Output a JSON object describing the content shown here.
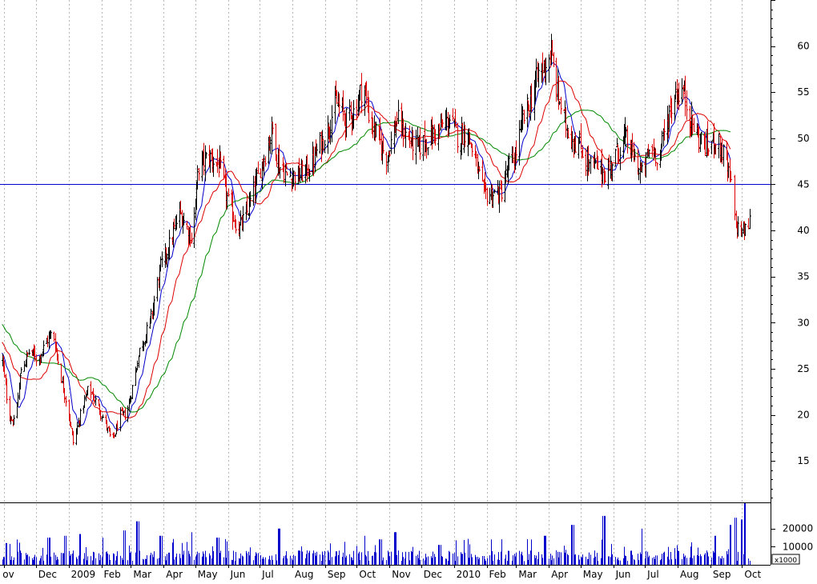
{
  "chart_data": [
    {
      "type": "candlestick",
      "title": "",
      "price_axis": {
        "ticks": [
          15,
          20,
          25,
          30,
          35,
          40,
          45,
          50,
          55,
          60
        ],
        "ylim": [
          10.5,
          65
        ],
        "side": "right"
      },
      "x_axis": {
        "month_ticks": [
          {
            "label": "ov",
            "day": 2
          },
          {
            "label": "Dec",
            "day": 32
          },
          {
            "label": "2009",
            "day": 63
          },
          {
            "label": "Feb",
            "day": 94
          },
          {
            "label": "Mar",
            "day": 122
          },
          {
            "label": "Apr",
            "day": 153
          },
          {
            "label": "May",
            "day": 183
          },
          {
            "label": "Jun",
            "day": 214
          },
          {
            "label": "Jul",
            "day": 244
          },
          {
            "label": "Aug",
            "day": 275
          },
          {
            "label": "Sep",
            "day": 306
          },
          {
            "label": "Oct",
            "day": 336
          },
          {
            "label": "Nov",
            "day": 367
          },
          {
            "label": "Dec",
            "day": 397
          },
          {
            "label": "2010",
            "day": 428
          },
          {
            "label": "Feb",
            "day": 459
          },
          {
            "label": "Mar",
            "day": 487
          },
          {
            "label": "Apr",
            "day": 518
          },
          {
            "label": "May",
            "day": 548
          },
          {
            "label": "Jun",
            "day": 579
          },
          {
            "label": "Jul",
            "day": 609
          },
          {
            "label": "Aug",
            "day": 640
          },
          {
            "label": "Sep",
            "day": 671
          },
          {
            "label": "Oct",
            "day": 701
          }
        ],
        "xlim": [
          -2,
          728
        ]
      },
      "horizontal_line": 45,
      "close_anchors": [
        {
          "day": 0,
          "close": 26
        },
        {
          "day": 6,
          "close": 20
        },
        {
          "day": 12,
          "close": 19
        },
        {
          "day": 18,
          "close": 25
        },
        {
          "day": 26,
          "close": 27
        },
        {
          "day": 34,
          "close": 26
        },
        {
          "day": 42,
          "close": 28
        },
        {
          "day": 48,
          "close": 29
        },
        {
          "day": 56,
          "close": 24
        },
        {
          "day": 63,
          "close": 20
        },
        {
          "day": 67,
          "close": 17
        },
        {
          "day": 74,
          "close": 20
        },
        {
          "day": 82,
          "close": 23
        },
        {
          "day": 90,
          "close": 21
        },
        {
          "day": 98,
          "close": 19
        },
        {
          "day": 104,
          "close": 17
        },
        {
          "day": 112,
          "close": 20
        },
        {
          "day": 118,
          "close": 20
        },
        {
          "day": 123,
          "close": 23
        },
        {
          "day": 130,
          "close": 27
        },
        {
          "day": 140,
          "close": 30
        },
        {
          "day": 150,
          "close": 36
        },
        {
          "day": 160,
          "close": 39
        },
        {
          "day": 168,
          "close": 42
        },
        {
          "day": 176,
          "close": 40
        },
        {
          "day": 180,
          "close": 39
        },
        {
          "day": 186,
          "close": 47
        },
        {
          "day": 196,
          "close": 48
        },
        {
          "day": 206,
          "close": 47
        },
        {
          "day": 214,
          "close": 43
        },
        {
          "day": 224,
          "close": 40
        },
        {
          "day": 232,
          "close": 42
        },
        {
          "day": 240,
          "close": 45
        },
        {
          "day": 248,
          "close": 48
        },
        {
          "day": 256,
          "close": 51
        },
        {
          "day": 262,
          "close": 47
        },
        {
          "day": 270,
          "close": 46
        },
        {
          "day": 282,
          "close": 46
        },
        {
          "day": 292,
          "close": 47
        },
        {
          "day": 300,
          "close": 49
        },
        {
          "day": 308,
          "close": 51
        },
        {
          "day": 316,
          "close": 54
        },
        {
          "day": 326,
          "close": 52
        },
        {
          "day": 334,
          "close": 53
        },
        {
          "day": 342,
          "close": 56
        },
        {
          "day": 348,
          "close": 52
        },
        {
          "day": 356,
          "close": 50
        },
        {
          "day": 364,
          "close": 48
        },
        {
          "day": 374,
          "close": 52
        },
        {
          "day": 384,
          "close": 50
        },
        {
          "day": 394,
          "close": 49
        },
        {
          "day": 404,
          "close": 50
        },
        {
          "day": 414,
          "close": 51
        },
        {
          "day": 424,
          "close": 52
        },
        {
          "day": 432,
          "close": 50
        },
        {
          "day": 440,
          "close": 51
        },
        {
          "day": 447,
          "close": 48
        },
        {
          "day": 456,
          "close": 44
        },
        {
          "day": 464,
          "close": 44
        },
        {
          "day": 472,
          "close": 44
        },
        {
          "day": 480,
          "close": 47
        },
        {
          "day": 486,
          "close": 48
        },
        {
          "day": 493,
          "close": 52
        },
        {
          "day": 500,
          "close": 54
        },
        {
          "day": 508,
          "close": 57
        },
        {
          "day": 514,
          "close": 58
        },
        {
          "day": 520,
          "close": 59
        },
        {
          "day": 526,
          "close": 55
        },
        {
          "day": 532,
          "close": 52
        },
        {
          "day": 540,
          "close": 50
        },
        {
          "day": 548,
          "close": 49
        },
        {
          "day": 556,
          "close": 47
        },
        {
          "day": 564,
          "close": 47
        },
        {
          "day": 572,
          "close": 46
        },
        {
          "day": 580,
          "close": 48
        },
        {
          "day": 590,
          "close": 50
        },
        {
          "day": 598,
          "close": 48
        },
        {
          "day": 606,
          "close": 46
        },
        {
          "day": 614,
          "close": 49
        },
        {
          "day": 622,
          "close": 48
        },
        {
          "day": 630,
          "close": 52
        },
        {
          "day": 638,
          "close": 55
        },
        {
          "day": 645,
          "close": 55
        },
        {
          "day": 652,
          "close": 52
        },
        {
          "day": 660,
          "close": 50
        },
        {
          "day": 668,
          "close": 49
        },
        {
          "day": 676,
          "close": 50
        },
        {
          "day": 684,
          "close": 48
        },
        {
          "day": 690,
          "close": 45
        },
        {
          "day": 694,
          "close": 41
        },
        {
          "day": 698,
          "close": 40
        },
        {
          "day": 704,
          "close": 40
        },
        {
          "day": 708,
          "close": 41
        }
      ],
      "gap": {
        "from_day": 691,
        "to_day": 693
      },
      "moving_averages": [
        {
          "color": "#0000cc",
          "period": 10
        },
        {
          "color": "#dd0000",
          "period": 25
        },
        {
          "color": "#008800",
          "period": 50
        }
      ],
      "colors": {
        "up": "#000000",
        "down": "#dd0000",
        "volume": "#0000cc",
        "hline": "#0000cc",
        "grid": "#b4b4b4",
        "axis": "#000000"
      }
    },
    {
      "type": "bar",
      "series_role": "volume",
      "multiplier_label": "x1000",
      "ticks": [
        10000,
        20000
      ],
      "ylim": [
        0,
        34000
      ],
      "typical_volume": 5000,
      "spikes": [
        {
          "day": 4,
          "value": 12000
        },
        {
          "day": 44,
          "value": 15000
        },
        {
          "day": 60,
          "value": 16000
        },
        {
          "day": 74,
          "value": 17000
        },
        {
          "day": 96,
          "value": 15000
        },
        {
          "day": 116,
          "value": 19000
        },
        {
          "day": 128,
          "value": 24000
        },
        {
          "day": 150,
          "value": 16000
        },
        {
          "day": 180,
          "value": 18000
        },
        {
          "day": 204,
          "value": 15000
        },
        {
          "day": 262,
          "value": 20000
        },
        {
          "day": 342,
          "value": 16000
        },
        {
          "day": 358,
          "value": 14000
        },
        {
          "day": 372,
          "value": 18000
        },
        {
          "day": 414,
          "value": 11000
        },
        {
          "day": 440,
          "value": 12000
        },
        {
          "day": 514,
          "value": 16000
        },
        {
          "day": 540,
          "value": 22000
        },
        {
          "day": 570,
          "value": 27000
        },
        {
          "day": 607,
          "value": 20000
        },
        {
          "day": 676,
          "value": 16000
        },
        {
          "day": 690,
          "value": 22000
        },
        {
          "day": 694,
          "value": 26000
        },
        {
          "day": 700,
          "value": 25000
        },
        {
          "day": 704,
          "value": 34000
        }
      ]
    }
  ]
}
